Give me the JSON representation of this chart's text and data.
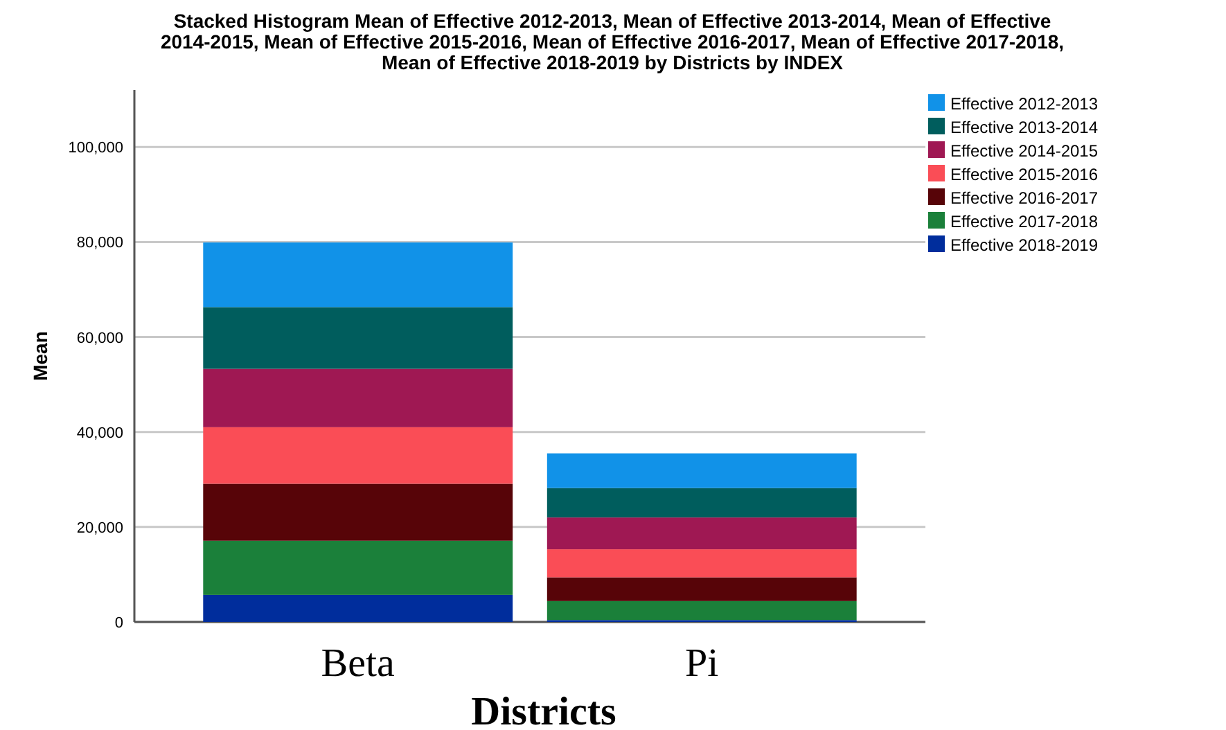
{
  "chart_data": {
    "type": "bar",
    "title": "Stacked Histogram Mean of Effective 2012-2013, Mean of Effective 2013-2014, Mean of Effective 2014-2015, Mean of Effective 2015-2016, Mean of Effective 2016-2017, Mean of Effective 2017-2018, Mean of Effective 2018-2019 by Districts by INDEX",
    "xlabel": "Districts",
    "ylabel": "Mean",
    "categories": [
      "Beta",
      "Pi"
    ],
    "stacked": true,
    "series": [
      {
        "name": "Effective 2018-2019",
        "color": "#002d9c",
        "values": [
          5700,
          400
        ]
      },
      {
        "name": "Effective 2017-2018",
        "color": "#1b803a",
        "values": [
          11400,
          4000
        ]
      },
      {
        "name": "Effective 2016-2017",
        "color": "#570408",
        "values": [
          12000,
          5000
        ]
      },
      {
        "name": "Effective 2015-2016",
        "color": "#fa4d56",
        "values": [
          11900,
          5900
        ]
      },
      {
        "name": "Effective 2014-2015",
        "color": "#9f1853",
        "values": [
          12300,
          6700
        ]
      },
      {
        "name": "Effective 2013-2014",
        "color": "#005d5d",
        "values": [
          13000,
          6200
        ]
      },
      {
        "name": "Effective 2012-2013",
        "color": "#1192e8",
        "values": [
          13600,
          7300
        ]
      }
    ],
    "ylim": [
      0,
      112000
    ],
    "yticks": [
      {
        "value": 0,
        "label": "0"
      },
      {
        "value": 20000,
        "label": "20,000"
      },
      {
        "value": 40000,
        "label": "40,000"
      },
      {
        "value": 60000,
        "label": "60,000"
      },
      {
        "value": 80000,
        "label": "80,000"
      },
      {
        "value": 100000,
        "label": "100,000"
      }
    ],
    "grid": "y",
    "legend": "top right"
  }
}
